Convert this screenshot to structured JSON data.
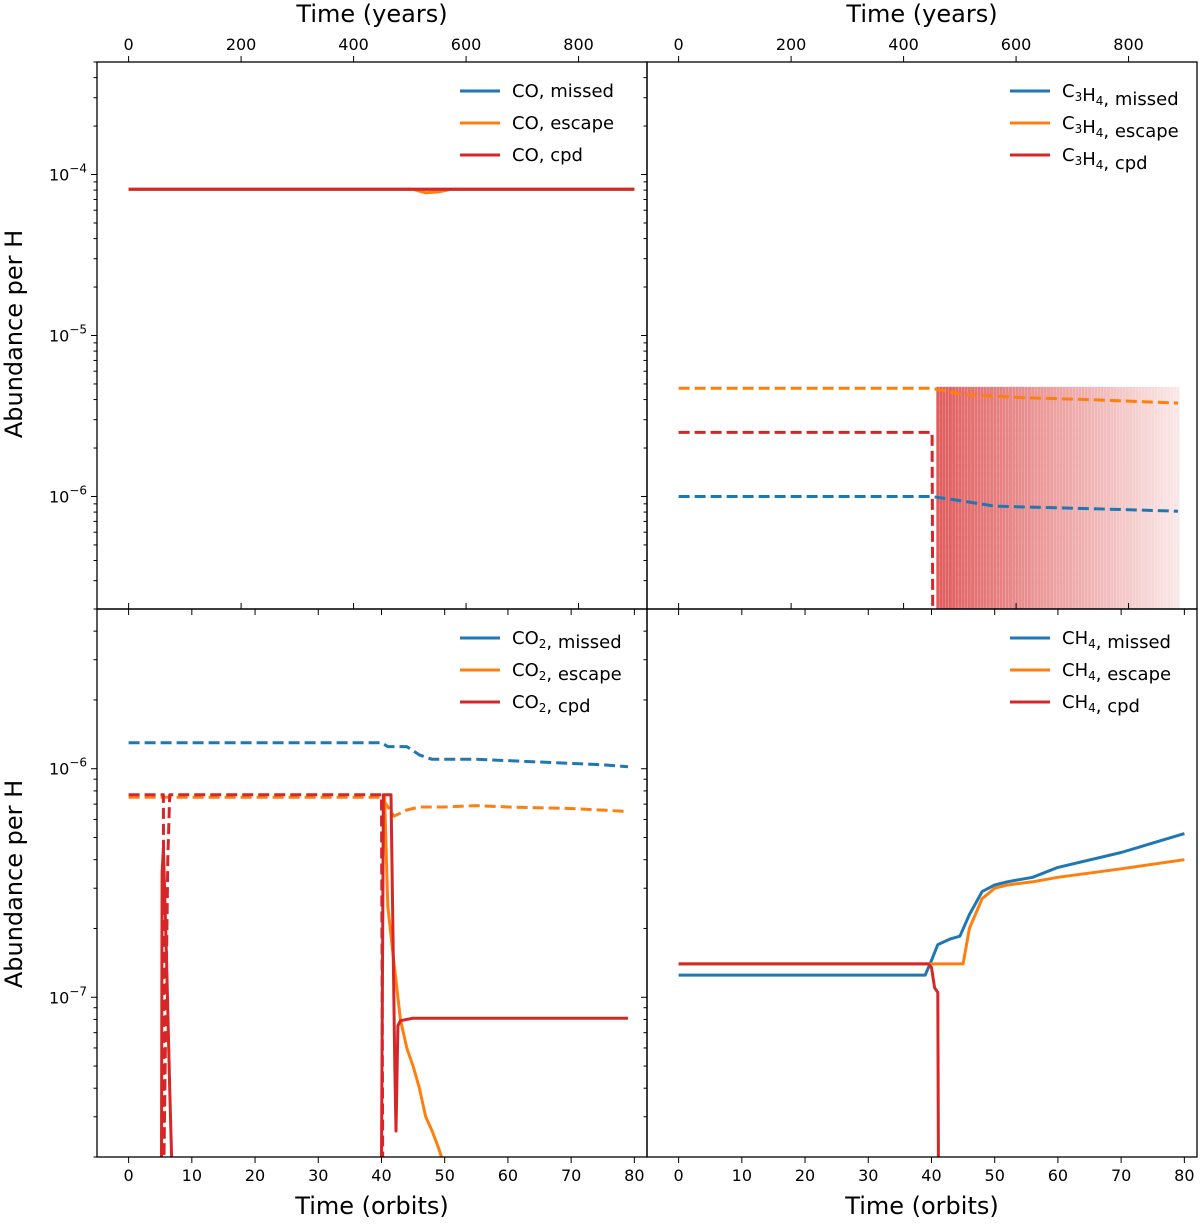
{
  "chart_data": [
    {
      "type": "line",
      "panel": "top-left",
      "species": "CO",
      "xlabel_top": "Time (years)",
      "xlabel_bottom": "",
      "ylabel": "Abundance per H",
      "ylim": [
        2e-07,
        0.0005
      ],
      "xlim_orbits": [
        -5,
        82
      ],
      "yscale": "log",
      "legend_placement": "top-right",
      "legend": [
        {
          "label": "CO, missed",
          "color": "#1f77b4"
        },
        {
          "label": "CO, escape",
          "color": "#ff7f0e"
        },
        {
          "label": "CO, cpd",
          "color": "#d62728"
        }
      ],
      "series": [
        {
          "name": "CO, missed",
          "style": "solid",
          "color": "#1f77b4",
          "x": [
            0,
            80
          ],
          "y": [
            8.1e-05,
            8.1e-05
          ]
        },
        {
          "name": "CO, escape",
          "style": "solid",
          "color": "#ff7f0e",
          "x": [
            0,
            45,
            47,
            49,
            51,
            80
          ],
          "y": [
            8.1e-05,
            8.1e-05,
            7.7e-05,
            7.8e-05,
            8.1e-05,
            8.1e-05
          ]
        },
        {
          "name": "CO, cpd",
          "style": "solid",
          "color": "#d62728",
          "x": [
            0,
            80
          ],
          "y": [
            8.1e-05,
            8.1e-05
          ]
        }
      ]
    },
    {
      "type": "line",
      "panel": "top-right",
      "species": "C3H4",
      "xlabel_top": "Time (years)",
      "xlabel_bottom": "",
      "ylabel": "",
      "ylim": [
        2e-07,
        0.0005
      ],
      "xlim_orbits": [
        -5,
        82
      ],
      "yscale": "log",
      "legend_placement": "top-right",
      "legend": [
        {
          "label": "C3H4, missed",
          "color": "#1f77b4"
        },
        {
          "label": "C3H4, escape",
          "color": "#ff7f0e"
        },
        {
          "label": "C3H4, cpd",
          "color": "#d62728"
        }
      ],
      "series": [
        {
          "name": "C3H4, missed",
          "style": "dashed",
          "color": "#1f77b4",
          "x": [
            0,
            40,
            44,
            50,
            60,
            70,
            79
          ],
          "y": [
            1e-06,
            1e-06,
            9.5e-07,
            8.7e-07,
            8.5e-07,
            8.3e-07,
            8.1e-07
          ]
        },
        {
          "name": "C3H4, escape",
          "style": "dashed",
          "color": "#ff7f0e",
          "x": [
            0,
            40,
            45,
            55,
            65,
            79
          ],
          "y": [
            4.7e-06,
            4.7e-06,
            4.3e-06,
            4.1e-06,
            4e-06,
            3.8e-06
          ]
        },
        {
          "name": "C3H4, cpd",
          "style": "dashed",
          "color": "#d62728",
          "x": [
            0,
            40,
            40.1,
            40.2
          ],
          "y": [
            2.5e-06,
            2.5e-06,
            2.5e-06,
            2e-07
          ]
        }
      ]
    },
    {
      "type": "line",
      "panel": "bottom-left",
      "species": "CO2",
      "xlabel_top": "",
      "xlabel_bottom": "Time (orbits)",
      "ylabel": "Abundance per H",
      "ylim": [
        2e-08,
        5e-06
      ],
      "xlim_orbits": [
        -5,
        82
      ],
      "yscale": "log",
      "legend_placement": "top-right",
      "legend": [
        {
          "label": "CO2, missed",
          "color": "#1f77b4"
        },
        {
          "label": "CO2, escape",
          "color": "#ff7f0e"
        },
        {
          "label": "CO2, cpd",
          "color": "#d62728"
        }
      ],
      "series": [
        {
          "name": "CO2, missed",
          "style": "dashed",
          "color": "#1f77b4",
          "x": [
            0,
            40,
            41,
            44,
            46,
            48,
            55,
            65,
            75,
            79
          ],
          "y": [
            1.3e-06,
            1.3e-06,
            1.25e-06,
            1.25e-06,
            1.15e-06,
            1.1e-06,
            1.1e-06,
            1.07e-06,
            1.04e-06,
            1.02e-06
          ]
        },
        {
          "name": "CO2, escape",
          "style": "dashed",
          "color": "#ff7f0e",
          "x": [
            0,
            40,
            42,
            44,
            46,
            50,
            55,
            60,
            70,
            79
          ],
          "y": [
            7.5e-07,
            7.5e-07,
            6.2e-07,
            6.6e-07,
            6.8e-07,
            6.8e-07,
            6.9e-07,
            6.8e-07,
            6.7e-07,
            6.5e-07
          ]
        },
        {
          "name": "CO2, cpd",
          "style": "dashed",
          "color": "#d62728",
          "x": [
            0,
            5.5,
            5.6,
            6.2,
            6.5,
            40,
            40.2
          ],
          "y": [
            7.7e-07,
            7.7e-07,
            2e-08,
            4e-07,
            7.7e-07,
            7.7e-07,
            2e-08
          ]
        },
        {
          "name": "CO2, escape",
          "style": "solid",
          "color": "#ff7f0e",
          "x": [
            40.5,
            41,
            42,
            43,
            44,
            45,
            46,
            47,
            48,
            49,
            49.5
          ],
          "y": [
            7.6e-07,
            2.5e-07,
            1.4e-07,
            8e-08,
            6e-08,
            5e-08,
            4e-08,
            3e-08,
            2.6e-08,
            2.2e-08,
            2e-08
          ]
        },
        {
          "name": "CO2, cpd",
          "style": "solid",
          "color": "#d62728",
          "x": [
            5.2,
            5.3,
            5.5,
            6.0,
            6.5,
            6.8
          ],
          "y": [
            2e-08,
            3.5e-07,
            4.5e-07,
            1.5e-07,
            4e-08,
            2e-08
          ]
        },
        {
          "name": "CO2, cpd",
          "style": "solid",
          "color": "#d62728",
          "x": [
            40,
            40.3,
            41.5,
            41.8,
            42.1,
            42.3,
            42.6,
            43,
            45,
            60,
            79
          ],
          "y": [
            2e-08,
            7.7e-07,
            7.7e-07,
            2e-07,
            5e-08,
            2.6e-08,
            7.5e-08,
            7.9e-08,
            8.1e-08,
            8.1e-08,
            8.1e-08
          ]
        }
      ]
    },
    {
      "type": "line",
      "panel": "bottom-right",
      "species": "CH4",
      "xlabel_top": "",
      "xlabel_bottom": "Time (orbits)",
      "ylabel": "",
      "ylim": [
        2e-08,
        5e-06
      ],
      "xlim_orbits": [
        -5,
        82
      ],
      "yscale": "log",
      "legend_placement": "top-right",
      "legend": [
        {
          "label": "CH4, missed",
          "color": "#1f77b4"
        },
        {
          "label": "CH4, escape",
          "color": "#ff7f0e"
        },
        {
          "label": "CH4, cpd",
          "color": "#d62728"
        }
      ],
      "series": [
        {
          "name": "CH4, missed",
          "style": "solid",
          "color": "#1f77b4",
          "x": [
            0,
            39,
            40,
            41,
            43,
            44.5,
            46,
            48,
            50,
            52,
            56,
            60,
            70,
            80
          ],
          "y": [
            1.25e-07,
            1.25e-07,
            1.45e-07,
            1.7e-07,
            1.8e-07,
            1.85e-07,
            2.3e-07,
            2.9e-07,
            3.1e-07,
            3.2e-07,
            3.35e-07,
            3.7e-07,
            4.3e-07,
            5.2e-07
          ]
        },
        {
          "name": "CH4, escape",
          "style": "solid",
          "color": "#ff7f0e",
          "x": [
            0,
            45,
            46,
            48,
            50,
            52,
            56,
            60,
            70,
            80
          ],
          "y": [
            1.4e-07,
            1.4e-07,
            2e-07,
            2.7e-07,
            3e-07,
            3.1e-07,
            3.2e-07,
            3.35e-07,
            3.65e-07,
            4e-07
          ]
        },
        {
          "name": "CH4, cpd",
          "style": "solid",
          "color": "#d62728",
          "x": [
            0,
            39.5,
            40,
            40.5,
            41,
            41.1
          ],
          "y": [
            1.4e-07,
            1.4e-07,
            1.35e-07,
            1.1e-07,
            1.05e-07,
            2e-08
          ]
        }
      ]
    }
  ],
  "axes": {
    "x_bottom_ticks": [
      "0",
      "10",
      "20",
      "30",
      "40",
      "50",
      "60",
      "70",
      "80"
    ],
    "x_bottom_tick_values": [
      0,
      10,
      20,
      30,
      40,
      50,
      60,
      70,
      80
    ],
    "x_top_ticks": [
      "0",
      "200",
      "400",
      "600",
      "800"
    ],
    "x_top_tick_years": [
      0,
      200,
      400,
      600,
      800
    ],
    "years_per_orbit": 11.24,
    "y_top_ticks": [
      {
        "base": "10",
        "exp": "−4",
        "value": 0.0001
      },
      {
        "base": "10",
        "exp": "−5",
        "value": 1e-05
      },
      {
        "base": "10",
        "exp": "−6",
        "value": 1e-06
      }
    ],
    "y_bottom_ticks": [
      {
        "base": "10",
        "exp": "−6",
        "value": 1e-06
      },
      {
        "base": "10",
        "exp": "−7",
        "value": 1e-07
      }
    ],
    "xlabel_top": "Time (years)",
    "xlabel_bottom": "Time (orbits)",
    "ylabel": "Abundance per H"
  }
}
